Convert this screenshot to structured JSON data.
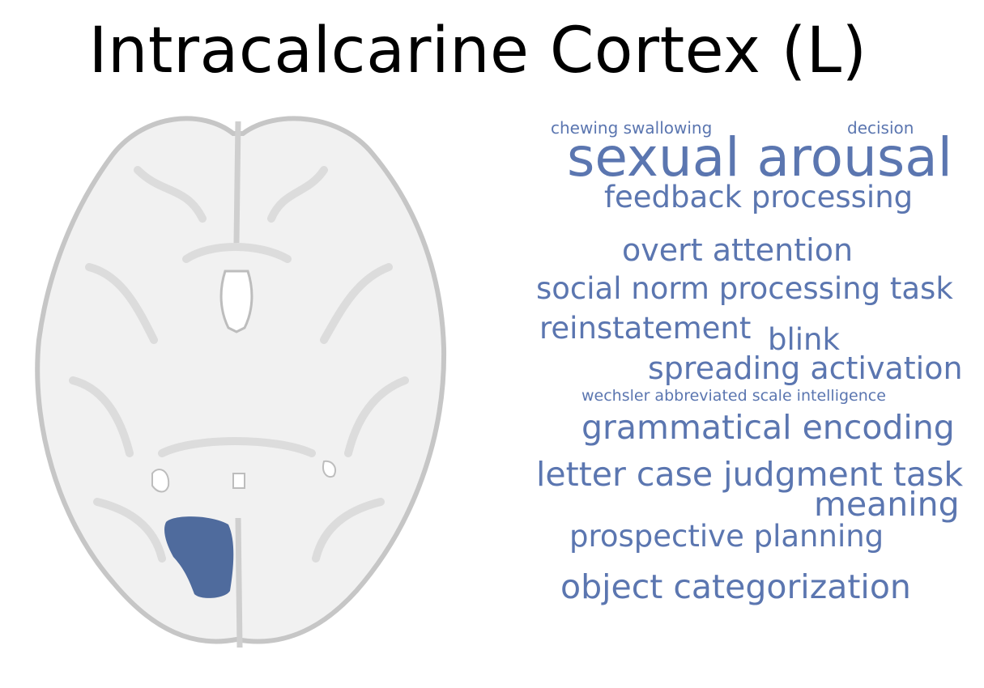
{
  "title": "Intracalcarine Cortex (L)",
  "colors": {
    "word": "#5b76b0",
    "region": "#4f6b9d",
    "brain_fill": "#f1f1f1",
    "brain_stroke": "#c9c9c9"
  },
  "words": [
    {
      "text": "chewing swallowing",
      "weight": 1
    },
    {
      "text": "decision",
      "weight": 1
    },
    {
      "text": "sexual arousal",
      "weight": 5
    },
    {
      "text": "feedback processing",
      "weight": 3
    },
    {
      "text": "overt attention",
      "weight": 3
    },
    {
      "text": "social norm processing task",
      "weight": 3
    },
    {
      "text": "reinstatement",
      "weight": 3
    },
    {
      "text": "blink",
      "weight": 3
    },
    {
      "text": "spreading activation",
      "weight": 3
    },
    {
      "text": "wechsler abbreviated scale intelligence",
      "weight": 1
    },
    {
      "text": "grammatical encoding",
      "weight": 3
    },
    {
      "text": "letter case judgment task",
      "weight": 3
    },
    {
      "text": "meaning",
      "weight": 3
    },
    {
      "text": "prospective planning",
      "weight": 3
    },
    {
      "text": "object categorization",
      "weight": 3
    }
  ]
}
